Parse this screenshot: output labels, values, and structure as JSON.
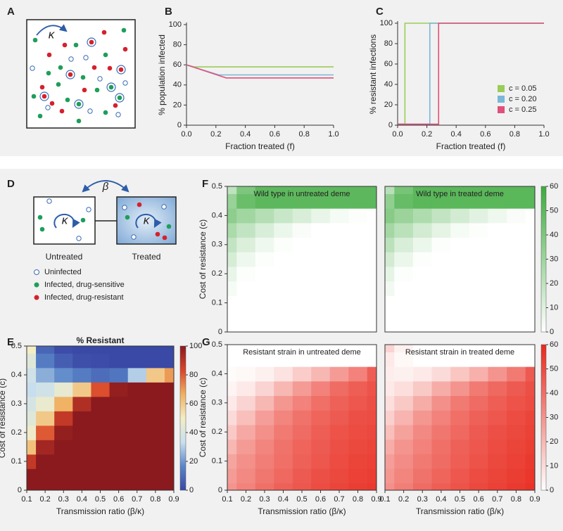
{
  "panel_labels": [
    "A",
    "B",
    "C",
    "D",
    "E",
    "F",
    "G"
  ],
  "diagram_a": {
    "kappa": "κ"
  },
  "diagram_d": {
    "beta": "β",
    "kappa_untreated": "κ",
    "kappa_treated": "κ",
    "untreated": "Untreated",
    "treated": "Treated",
    "legend": [
      "Uninfected",
      "Infected, drug-sensitive",
      "Infected, drug-resistant"
    ]
  },
  "chart_data": [
    {
      "type": "line",
      "xlabel": "Fraction treated (f)",
      "ylabel": "% population infected",
      "x": [
        0,
        0.05,
        0.22,
        0.27,
        1.0
      ],
      "series": [
        {
          "color": "#9acd57",
          "values": [
            60,
            58,
            58,
            58,
            58
          ]
        },
        {
          "color": "#7ab8d8",
          "values": [
            60,
            57.7,
            50,
            50,
            50
          ]
        },
        {
          "color": "#e0507a",
          "values": [
            60,
            57.6,
            49.4,
            47,
            47
          ]
        }
      ],
      "xlim": [
        0,
        1
      ],
      "ylim": [
        0,
        100
      ],
      "xticks": [
        {
          "value": 0,
          "label": "0.0"
        },
        0.2,
        0.4,
        0.6,
        0.8,
        {
          "value": 1,
          "label": "1.0"
        }
      ],
      "yticks": [
        0,
        20,
        40,
        60,
        80,
        100
      ]
    },
    {
      "type": "line",
      "xlabel": "Fraction treated (f)",
      "ylabel": "% resistant infections",
      "x": [
        0,
        0.05,
        0.05,
        0.22,
        0.22,
        0.28,
        0.28,
        1.0
      ],
      "series": [
        {
          "name": "c = 0.05",
          "color": "#9acd57",
          "values": [
            1,
            1,
            100,
            100,
            100,
            100,
            100,
            100
          ]
        },
        {
          "name": "c = 0.20",
          "color": "#7ab8d8",
          "values": [
            1,
            1,
            1,
            1,
            100,
            100,
            100,
            100
          ]
        },
        {
          "name": "c = 0.25",
          "color": "#e0507a",
          "values": [
            1,
            1,
            1,
            1,
            1,
            1,
            100,
            100
          ]
        }
      ],
      "legend": "lower right",
      "xlim": [
        0,
        1
      ],
      "ylim": [
        0,
        100
      ],
      "xticks": [
        {
          "value": 0,
          "label": "0.0"
        },
        0.2,
        0.4,
        0.6,
        0.8,
        {
          "value": 1,
          "label": "1.0"
        }
      ],
      "yticks": [
        0,
        20,
        40,
        60,
        80,
        100
      ]
    },
    {
      "type": "heatmap",
      "title": "% Resistant",
      "xlabel": "Transmission ratio (β/κ)",
      "ylabel": "Cost of resistance (c)",
      "x": [
        0.1,
        0.2,
        0.3,
        0.4,
        0.5,
        0.6,
        0.7,
        0.8,
        0.9
      ],
      "y": [
        0,
        0.05,
        0.1,
        0.15,
        0.2,
        0.25,
        0.3,
        0.35,
        0.4,
        0.45,
        0.5
      ],
      "z": [
        [
          100,
          100,
          100,
          100,
          100,
          100,
          100,
          100,
          100
        ],
        [
          100,
          100,
          100,
          100,
          100,
          100,
          100,
          100,
          100
        ],
        [
          88,
          100,
          100,
          100,
          100,
          100,
          100,
          100,
          100
        ],
        [
          62,
          95,
          100,
          100,
          100,
          100,
          100,
          100,
          100
        ],
        [
          48,
          80,
          98,
          100,
          100,
          100,
          100,
          100,
          100
        ],
        [
          42,
          60,
          88,
          100,
          100,
          100,
          100,
          100,
          100
        ],
        [
          38,
          46,
          66,
          92,
          100,
          100,
          100,
          100,
          100
        ],
        [
          33,
          36,
          45,
          60,
          82,
          98,
          100,
          100,
          100
        ],
        [
          36,
          24,
          18,
          14,
          10,
          12,
          30,
          60,
          70
        ],
        [
          42,
          14,
          6,
          2,
          1,
          0,
          0,
          0,
          0
        ],
        [
          50,
          8,
          1,
          0,
          0,
          0,
          0,
          0,
          0
        ]
      ],
      "colormap": [
        "#3a48a6",
        "#5a86c8",
        "#c9e0ef",
        "#f4edc4",
        "#f0b060",
        "#d9452a",
        "#8a1a1e"
      ],
      "zlim": [
        0,
        100
      ],
      "zticks": [
        0,
        20,
        40,
        60,
        80,
        100
      ],
      "xlim": [
        0.1,
        0.9
      ],
      "ylim": [
        0,
        0.5
      ],
      "xticks": [
        0.1,
        0.2,
        0.3,
        0.4,
        0.5,
        0.6,
        0.7,
        0.8,
        0.9
      ],
      "yticks": [
        0,
        0.1,
        0.2,
        0.3,
        0.4,
        0.5
      ]
    },
    {
      "type": "heatmap",
      "title": "Wild type in untreated deme",
      "ylabel": "Cost of resistance (c)",
      "x": [
        0.1,
        0.2,
        0.3,
        0.4,
        0.5,
        0.6,
        0.7,
        0.8,
        0.9
      ],
      "y": [
        0,
        0.05,
        0.1,
        0.15,
        0.2,
        0.25,
        0.3,
        0.35,
        0.4,
        0.45,
        0.5
      ],
      "z": [
        [
          0,
          0,
          0,
          0,
          0,
          0,
          0,
          0,
          0
        ],
        [
          0,
          0,
          0,
          0,
          0,
          0,
          0,
          0,
          0
        ],
        [
          0,
          0,
          0,
          0,
          0,
          0,
          0,
          0,
          0
        ],
        [
          3,
          0,
          0,
          0,
          0,
          0,
          0,
          0,
          0
        ],
        [
          7,
          1,
          0,
          0,
          0,
          0,
          0,
          0,
          0
        ],
        [
          13,
          5,
          1,
          0,
          0,
          0,
          0,
          0,
          0
        ],
        [
          19,
          11,
          5,
          1,
          0,
          0,
          0,
          0,
          0
        ],
        [
          26,
          19,
          12,
          6,
          2,
          0,
          0,
          0,
          0
        ],
        [
          35,
          29,
          23,
          17,
          12,
          7,
          3,
          1,
          0
        ],
        [
          32,
          46,
          50,
          50,
          50,
          50,
          50,
          50,
          50
        ],
        [
          20,
          40,
          50,
          50,
          50,
          50,
          50,
          50,
          50
        ]
      ],
      "colormap": [
        "#ffffff",
        "#3daa3d"
      ],
      "zlim": [
        0,
        60
      ],
      "xlim": [
        0.1,
        0.9
      ],
      "ylim": [
        0,
        0.5
      ],
      "yticks": [
        0,
        0.1,
        0.2,
        0.3,
        0.4,
        0.5
      ]
    },
    {
      "type": "heatmap",
      "title": "Wild type in treated deme",
      "x": [
        0.1,
        0.2,
        0.3,
        0.4,
        0.5,
        0.6,
        0.7,
        0.8,
        0.9
      ],
      "y": [
        0,
        0.05,
        0.1,
        0.15,
        0.2,
        0.25,
        0.3,
        0.35,
        0.4,
        0.45,
        0.5
      ],
      "z": [
        [
          0,
          0,
          0,
          0,
          0,
          0,
          0,
          0,
          0
        ],
        [
          0,
          0,
          0,
          0,
          0,
          0,
          0,
          0,
          0
        ],
        [
          0,
          0,
          0,
          0,
          0,
          0,
          0,
          0,
          0
        ],
        [
          4,
          0,
          0,
          0,
          0,
          0,
          0,
          0,
          0
        ],
        [
          8,
          1,
          0,
          0,
          0,
          0,
          0,
          0,
          0
        ],
        [
          14,
          6,
          1,
          0,
          0,
          0,
          0,
          0,
          0
        ],
        [
          21,
          12,
          6,
          1,
          0,
          0,
          0,
          0,
          0
        ],
        [
          28,
          21,
          14,
          8,
          3,
          1,
          0,
          0,
          0
        ],
        [
          37,
          31,
          25,
          19,
          14,
          9,
          5,
          2,
          0
        ],
        [
          34,
          47,
          51,
          51,
          51,
          51,
          51,
          51,
          51
        ],
        [
          22,
          42,
          51,
          51,
          51,
          51,
          51,
          51,
          51
        ]
      ],
      "colormap": [
        "#ffffff",
        "#3daa3d"
      ],
      "zlim": [
        0,
        60
      ],
      "zticks": [
        0,
        10,
        20,
        30,
        40,
        50,
        60
      ],
      "xlim": [
        0.1,
        0.9
      ],
      "ylim": [
        0,
        0.5
      ]
    },
    {
      "type": "heatmap",
      "title": "Resistant strain in untreated deme",
      "xlabel": "Transmission ratio (β/κ)",
      "ylabel": "Cost of resistance (c)",
      "x": [
        0.1,
        0.2,
        0.3,
        0.4,
        0.5,
        0.6,
        0.7,
        0.8,
        0.9
      ],
      "y": [
        0,
        0.05,
        0.1,
        0.15,
        0.2,
        0.25,
        0.3,
        0.35,
        0.4,
        0.45,
        0.5
      ],
      "z": [
        [
          30,
          35,
          40,
          44,
          47,
          50,
          52,
          54,
          55
        ],
        [
          28,
          33,
          38,
          42,
          46,
          49,
          51,
          53,
          54
        ],
        [
          25,
          31,
          36,
          40,
          44,
          47,
          50,
          52,
          53
        ],
        [
          20,
          28,
          34,
          39,
          43,
          46,
          49,
          51,
          52
        ],
        [
          15,
          24,
          31,
          37,
          41,
          45,
          48,
          50,
          51
        ],
        [
          10,
          18,
          27,
          34,
          39,
          43,
          46,
          49,
          50
        ],
        [
          6,
          12,
          20,
          29,
          35,
          40,
          44,
          47,
          49
        ],
        [
          3,
          6,
          12,
          20,
          28,
          35,
          41,
          45,
          48
        ],
        [
          1,
          2,
          4,
          8,
          14,
          20,
          28,
          35,
          45
        ],
        [
          0,
          0,
          0,
          0,
          0,
          0,
          0,
          0,
          0
        ],
        [
          0,
          0,
          0,
          0,
          0,
          0,
          0,
          0,
          0
        ]
      ],
      "colormap": [
        "#ffffff",
        "#e8281c"
      ],
      "zlim": [
        0,
        60
      ],
      "xlim": [
        0.1,
        0.9
      ],
      "ylim": [
        0,
        0.5
      ],
      "xticks": [
        0.1,
        0.2,
        0.3,
        0.4,
        0.5,
        0.6,
        0.7,
        0.8,
        0.9
      ],
      "yticks": [
        0,
        0.1,
        0.2,
        0.3,
        0.4,
        0.5
      ]
    },
    {
      "type": "heatmap",
      "title": "Resistant strain in treated deme",
      "xlabel": "Transmission ratio (β/κ)",
      "x": [
        0.1,
        0.2,
        0.3,
        0.4,
        0.5,
        0.6,
        0.7,
        0.8,
        0.9
      ],
      "y": [
        0,
        0.05,
        0.1,
        0.15,
        0.2,
        0.25,
        0.3,
        0.35,
        0.4,
        0.45,
        0.5
      ],
      "z": [
        [
          31,
          36,
          41,
          45,
          48,
          51,
          53,
          55,
          57
        ],
        [
          29,
          34,
          39,
          43,
          47,
          50,
          52,
          54,
          56
        ],
        [
          27,
          32,
          37,
          41,
          45,
          48,
          51,
          53,
          55
        ],
        [
          23,
          30,
          35,
          40,
          44,
          47,
          50,
          52,
          54
        ],
        [
          18,
          26,
          33,
          38,
          42,
          46,
          49,
          51,
          53
        ],
        [
          13,
          21,
          29,
          35,
          40,
          44,
          47,
          50,
          52
        ],
        [
          9,
          15,
          23,
          31,
          37,
          41,
          45,
          48,
          50
        ],
        [
          6,
          9,
          15,
          23,
          30,
          37,
          42,
          46,
          49
        ],
        [
          5,
          4,
          6,
          10,
          16,
          22,
          30,
          37,
          46
        ],
        [
          6,
          2,
          0,
          0,
          0,
          0,
          0,
          0,
          0
        ],
        [
          12,
          4,
          0,
          0,
          0,
          0,
          0,
          0,
          0
        ]
      ],
      "colormap": [
        "#ffffff",
        "#e8281c"
      ],
      "zlim": [
        0,
        60
      ],
      "zticks": [
        0,
        10,
        20,
        30,
        40,
        50,
        60
      ],
      "xlim": [
        0.1,
        0.9
      ],
      "ylim": [
        0,
        0.5
      ],
      "xticks": [
        0.1,
        0.2,
        0.3,
        0.4,
        0.5,
        0.6,
        0.7,
        0.8,
        0.9
      ]
    }
  ]
}
